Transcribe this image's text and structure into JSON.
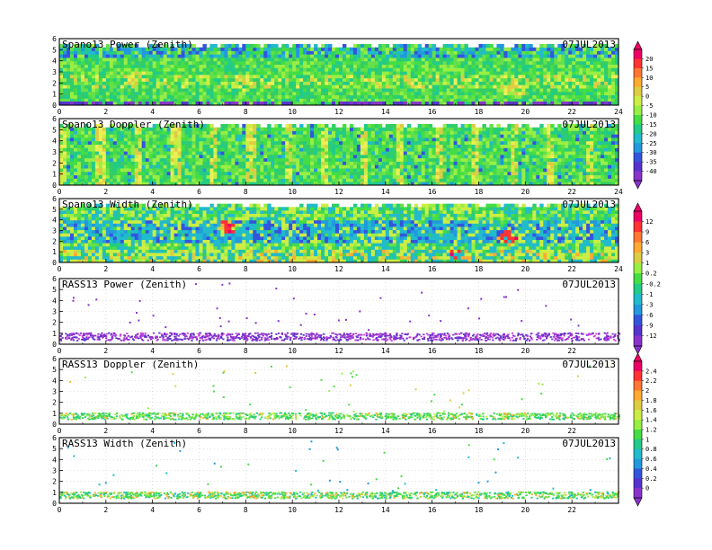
{
  "chart_data": [
    {
      "type": "heatmap",
      "title": "Spano13 Power (Zenith)",
      "date": "07JUL2013",
      "x_ticks": [
        "0",
        "2",
        "4",
        "6",
        "8",
        "10",
        "12",
        "14",
        "16",
        "18",
        "20",
        "22",
        "24"
      ],
      "y_ticks": [
        "0",
        "1",
        "2",
        "3",
        "4",
        "5",
        "6"
      ],
      "xlim": [
        0,
        24
      ],
      "ylim": [
        0,
        6
      ],
      "colorbar_group": "power",
      "features": [
        {
          "x": 7.8,
          "y": 2.3,
          "intensity": 0.75
        },
        {
          "x": 19.5,
          "y": 1.8,
          "intensity": 0.8
        },
        {
          "x": 3.5,
          "y": 2.8,
          "intensity": 0.45
        }
      ]
    },
    {
      "type": "heatmap",
      "title": "Spano13 Doppler (Zenith)",
      "date": "07JUL2013",
      "x_ticks": [
        "0",
        "2",
        "4",
        "6",
        "8",
        "10",
        "12",
        "14",
        "16",
        "18",
        "20",
        "22",
        "24"
      ],
      "y_ticks": [
        "0",
        "1",
        "2",
        "3",
        "4",
        "5",
        "6"
      ],
      "xlim": [
        0,
        24
      ],
      "ylim": [
        0,
        6
      ],
      "colorbar_group": "power",
      "features": []
    },
    {
      "type": "heatmap",
      "title": "Spano13 Width (Zenith)",
      "date": "07JUL2013",
      "x_ticks": [
        "0",
        "2",
        "4",
        "6",
        "8",
        "10",
        "12",
        "14",
        "16",
        "18",
        "20",
        "22",
        "24"
      ],
      "y_ticks": [
        "0",
        "1",
        "2",
        "3",
        "4",
        "5",
        "6"
      ],
      "xlim": [
        0,
        24
      ],
      "ylim": [
        0,
        6
      ],
      "colorbar_group": "width",
      "features": [
        {
          "x": 7.2,
          "y": 3.5,
          "intensity": 0.9
        },
        {
          "x": 19.3,
          "y": 2.5,
          "intensity": 0.9
        },
        {
          "x": 17.0,
          "y": 0.8,
          "intensity": 0.8
        }
      ]
    },
    {
      "type": "scatter",
      "title": "RASS13 Power (Zenith)",
      "date": "07JUL2013",
      "x_ticks": [
        "0",
        "2",
        "4",
        "6",
        "8",
        "10",
        "12",
        "14",
        "16",
        "18",
        "20",
        "22"
      ],
      "y_ticks": [
        "0",
        "1",
        "2",
        "3",
        "4",
        "5",
        "6"
      ],
      "xlim": [
        0,
        24
      ],
      "ylim": [
        0,
        6
      ],
      "colorbar_group": "width",
      "band": [
        0.4,
        1.1
      ]
    },
    {
      "type": "scatter",
      "title": "RASS13 Doppler (Zenith)",
      "date": "07JUL2013",
      "x_ticks": [
        "0",
        "2",
        "4",
        "6",
        "8",
        "10",
        "12",
        "14",
        "16",
        "18",
        "20",
        "22"
      ],
      "y_ticks": [
        "0",
        "1",
        "2",
        "3",
        "4",
        "5",
        "6"
      ],
      "xlim": [
        0,
        24
      ],
      "ylim": [
        0,
        6
      ],
      "colorbar_group": "doppler",
      "band": [
        0.5,
        1.1
      ]
    },
    {
      "type": "scatter",
      "title": "RASS13 Width (Zenith)",
      "date": "07JUL2013",
      "x_ticks": [
        "0",
        "2",
        "4",
        "6",
        "8",
        "10",
        "12",
        "14",
        "16",
        "18",
        "20",
        "22"
      ],
      "y_ticks": [
        "0",
        "1",
        "2",
        "3",
        "4",
        "5",
        "6"
      ],
      "xlim": [
        0,
        24
      ],
      "ylim": [
        0,
        6
      ],
      "colorbar_group": "doppler",
      "band": [
        0.5,
        1.1
      ]
    }
  ],
  "colorbars": [
    {
      "id": "power",
      "labels": [
        "20",
        "15",
        "10",
        "5",
        "0",
        "-5",
        "-10",
        "-15",
        "-20",
        "-25",
        "-30",
        "-35",
        "-40"
      ],
      "colors": [
        "#ee0066",
        "#ff3333",
        "#ff7733",
        "#ffaa33",
        "#ddcc44",
        "#ccee44",
        "#99ee44",
        "#44dd44",
        "#22cc88",
        "#22bbcc",
        "#2299dd",
        "#3355dd",
        "#5533cc",
        "#8833cc"
      ]
    },
    {
      "id": "width",
      "labels": [
        "12",
        "9",
        "6",
        "3",
        "1",
        "0.2",
        "-0.2",
        "-1",
        "-3",
        "-6",
        "-9",
        "-12"
      ],
      "colors": [
        "#ee0066",
        "#ff3333",
        "#ff7733",
        "#ffaa33",
        "#ddcc44",
        "#99ee44",
        "#44dd44",
        "#22cc88",
        "#22bbcc",
        "#2299dd",
        "#3355dd",
        "#5533cc",
        "#8833cc"
      ]
    },
    {
      "id": "doppler",
      "labels": [
        "2.4",
        "2.2",
        "2",
        "1.8",
        "1.6",
        "1.4",
        "1.2",
        "1",
        "0.8",
        "0.6",
        "0.4",
        "0.2",
        "0"
      ],
      "colors": [
        "#ee0066",
        "#ff3333",
        "#ff7733",
        "#ffaa33",
        "#ddcc44",
        "#ccee44",
        "#99ee44",
        "#44dd44",
        "#22cc88",
        "#22bbcc",
        "#2299dd",
        "#3355dd",
        "#5533cc",
        "#8833cc"
      ]
    }
  ]
}
